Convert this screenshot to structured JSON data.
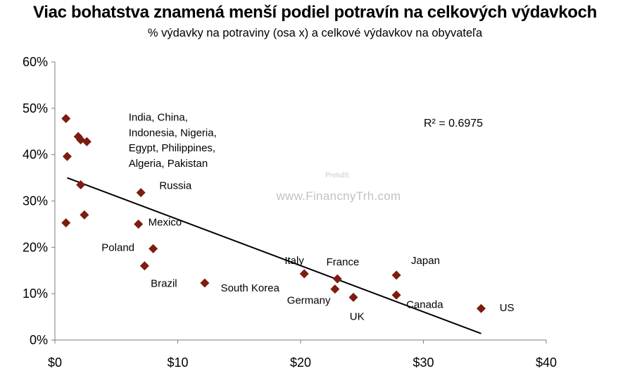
{
  "title": "Viac bohatstva znamená menší podiel potravín na celkových výdavkoch",
  "subtitle": "% výdavky na potraviny (osa x) a celkové výdavkov na obyvateľa",
  "watermark": {
    "line1": "Preložil:",
    "line2": "www.FinancnyTrh.com"
  },
  "colors": {
    "marker": "#7b1d0f",
    "trendline": "#000000",
    "axis": "#7f7f7f"
  },
  "chart_data": {
    "type": "scatter",
    "title": "Viac bohatstva znamená menší podiel potravín na celkových výdavkoch",
    "subtitle": "% výdavky na potraviny (osa x) a celkové výdavkov na obyvateľa",
    "xlabel": "",
    "ylabel": "",
    "xlim": [
      0,
      40
    ],
    "ylim": [
      0,
      60
    ],
    "x_unit": "$",
    "y_unit": "%",
    "xticks": [
      "$0",
      "$10",
      "$20",
      "$30",
      "$40"
    ],
    "yticks": [
      "0%",
      "10%",
      "20%",
      "30%",
      "40%",
      "50%",
      "60%"
    ],
    "grid": false,
    "points": [
      {
        "x": 0.9,
        "y": 47.8
      },
      {
        "x": 1.9,
        "y": 43.9
      },
      {
        "x": 2.1,
        "y": 43.2
      },
      {
        "x": 2.6,
        "y": 42.8
      },
      {
        "x": 1.0,
        "y": 39.6
      },
      {
        "x": 2.1,
        "y": 33.5
      },
      {
        "x": 7.0,
        "y": 31.8
      },
      {
        "x": 0.9,
        "y": 25.3
      },
      {
        "x": 2.4,
        "y": 27.0
      },
      {
        "x": 6.8,
        "y": 25.0
      },
      {
        "x": 8.0,
        "y": 19.7
      },
      {
        "x": 7.3,
        "y": 16.0
      },
      {
        "x": 12.2,
        "y": 12.3
      },
      {
        "x": 20.3,
        "y": 14.3
      },
      {
        "x": 23.0,
        "y": 13.2
      },
      {
        "x": 22.8,
        "y": 11.0
      },
      {
        "x": 24.3,
        "y": 9.2
      },
      {
        "x": 27.8,
        "y": 14.0
      },
      {
        "x": 27.8,
        "y": 9.7
      },
      {
        "x": 34.7,
        "y": 6.8
      }
    ],
    "trendline": {
      "x": [
        1.0,
        34.7
      ],
      "y": [
        35.0,
        1.4
      ]
    },
    "r_squared_label": "R² = 0.6975",
    "annotations": [
      {
        "text": "India,  China,",
        "x": 6.0,
        "y": 47.3
      },
      {
        "text": "Indonesia, Nigeria,",
        "x": 6.0,
        "y": 44.0
      },
      {
        "text": "Egypt, Philippines,",
        "x": 6.0,
        "y": 40.7
      },
      {
        "text": "Algeria, Pakistan",
        "x": 6.0,
        "y": 37.4
      },
      {
        "text": "Russia",
        "x": 8.5,
        "y": 32.6
      },
      {
        "text": "Mexico",
        "x": 7.6,
        "y": 24.7
      },
      {
        "text": "Poland",
        "x": 3.8,
        "y": 19.2
      },
      {
        "text": "Brazil",
        "x": 7.8,
        "y": 11.5
      },
      {
        "text": "South Korea",
        "x": 13.5,
        "y": 10.5
      },
      {
        "text": "Italy",
        "x": 18.7,
        "y": 16.4
      },
      {
        "text": "France",
        "x": 22.1,
        "y": 16.1
      },
      {
        "text": "Germany",
        "x": 18.9,
        "y": 7.8
      },
      {
        "text": "UK",
        "x": 24.0,
        "y": 4.3
      },
      {
        "text": "Japan",
        "x": 29.0,
        "y": 16.4
      },
      {
        "text": "Canada",
        "x": 28.6,
        "y": 6.9
      },
      {
        "text": "US",
        "x": 36.2,
        "y": 6.2
      }
    ]
  }
}
